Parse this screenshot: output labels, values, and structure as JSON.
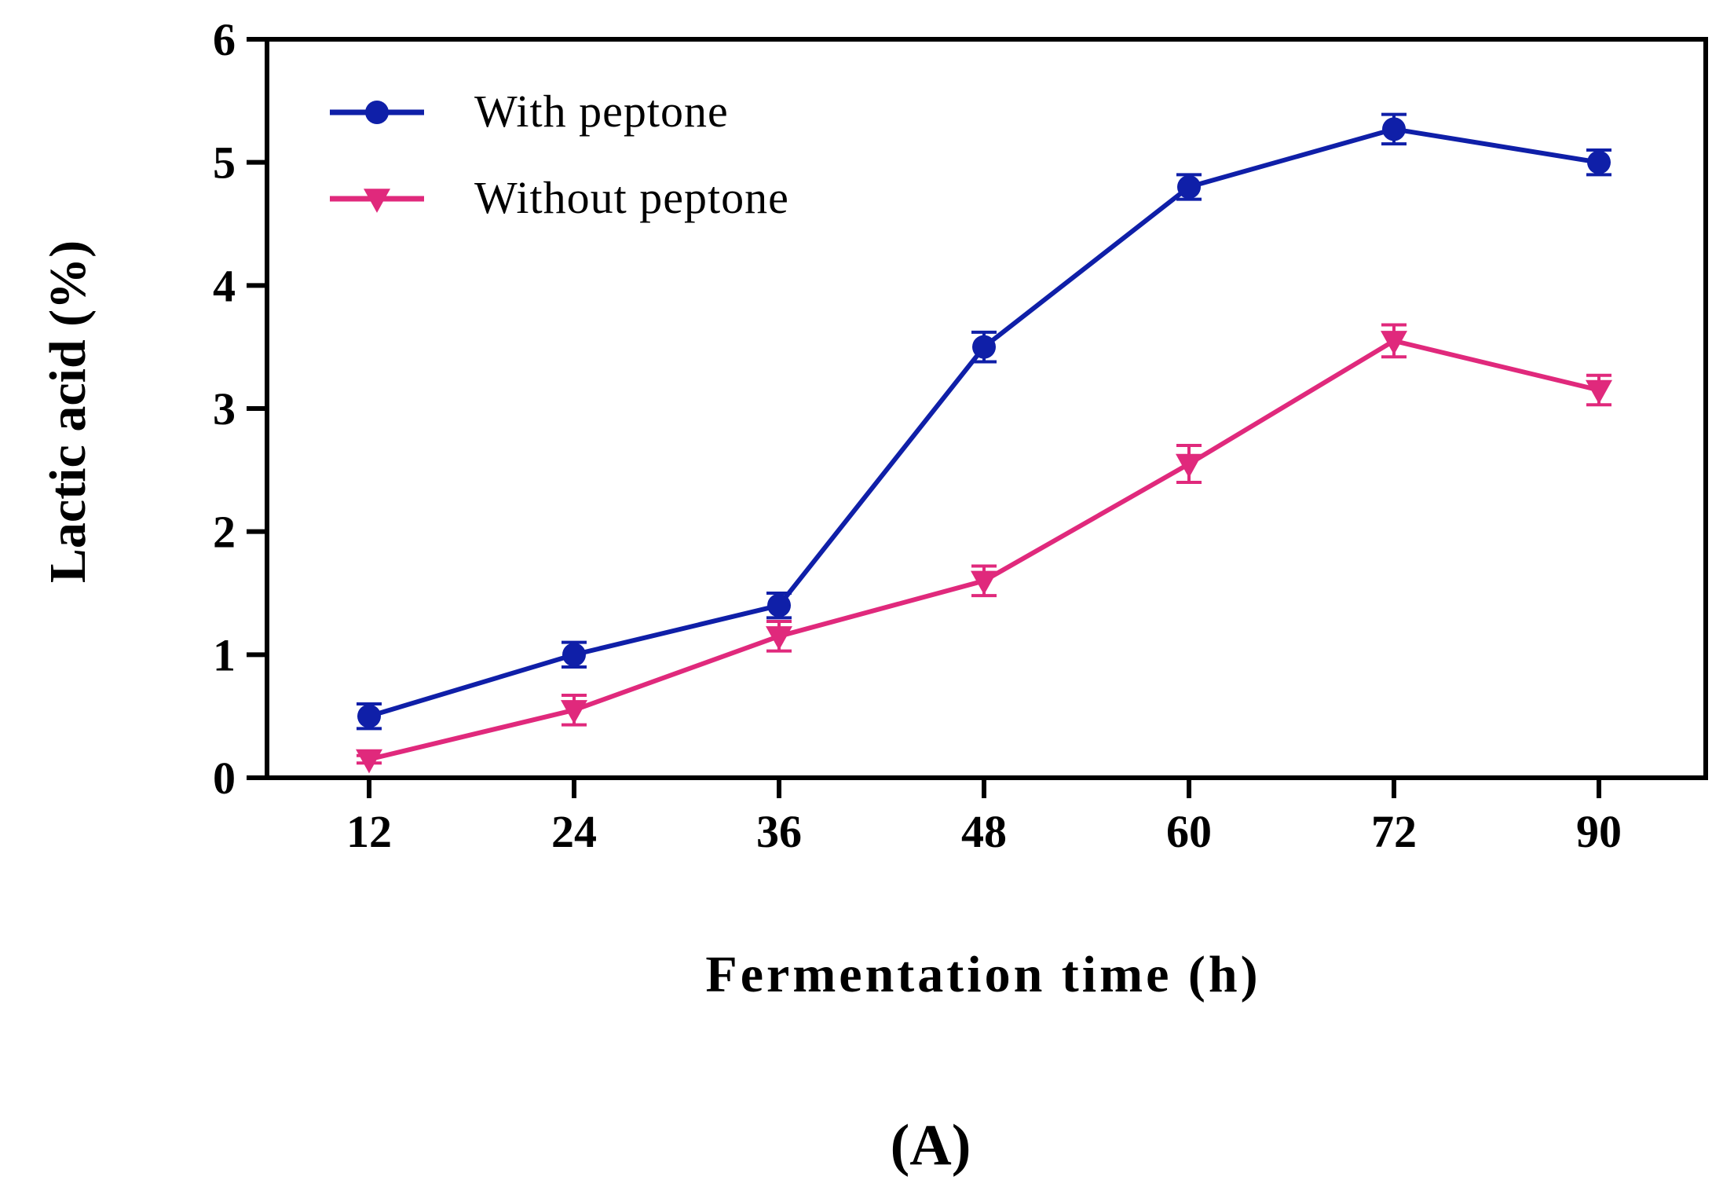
{
  "chart_data": {
    "type": "line",
    "x": [
      12,
      24,
      36,
      48,
      60,
      72,
      90
    ],
    "xlabel": "Fermentation time (h)",
    "ylabel": "Lactic acid (%)",
    "ylim": [
      0,
      6
    ],
    "yticks": [
      0,
      1,
      2,
      3,
      4,
      5,
      6
    ],
    "grid": false,
    "legend_position": "top-left",
    "panel_label": "(A)",
    "series": [
      {
        "name": "With peptone",
        "color": "#0f1fa8",
        "marker": "circle",
        "values": [
          0.5,
          1.0,
          1.4,
          3.5,
          4.8,
          5.27,
          5.0
        ],
        "errors": [
          0.1,
          0.1,
          0.1,
          0.12,
          0.1,
          0.12,
          0.1
        ]
      },
      {
        "name": "Without peptone",
        "color": "#e0297c",
        "marker": "triangle-down",
        "values": [
          0.15,
          0.55,
          1.15,
          1.6,
          2.55,
          3.55,
          3.15
        ],
        "errors": [
          0.03,
          0.12,
          0.12,
          0.12,
          0.15,
          0.13,
          0.12
        ]
      }
    ]
  }
}
